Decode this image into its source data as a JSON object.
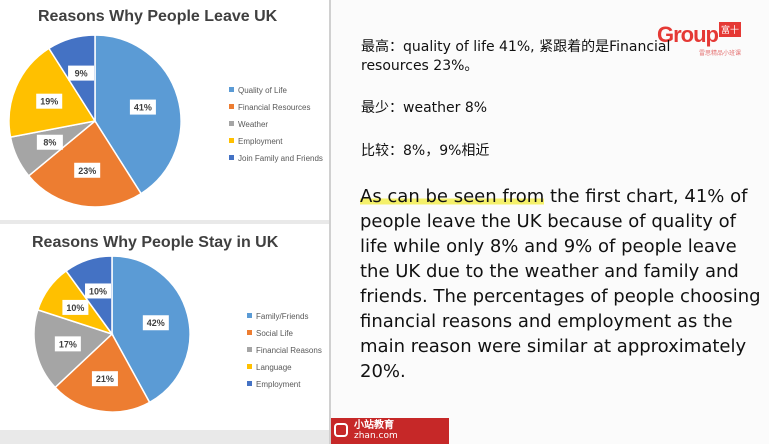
{
  "chart_data": [
    {
      "type": "pie",
      "title": "Reasons Why People Leave UK",
      "categories": [
        "Quality of Life",
        "Financial Resources",
        "Weather",
        "Employment",
        "Join Family and Friends"
      ],
      "values": [
        41,
        23,
        8,
        19,
        9
      ],
      "labels": [
        "41%",
        "23%",
        "8%",
        "19%",
        "9%"
      ],
      "colors": [
        "#5b9bd5",
        "#ed7d31",
        "#a5a5a5",
        "#ffc000",
        "#4472c4"
      ],
      "legend": "right"
    },
    {
      "type": "pie",
      "title": "Reasons Why People Stay in UK",
      "categories": [
        "Family/Friends",
        "Social Life",
        "Financial Reasons",
        "Language",
        "Employment"
      ],
      "values": [
        42,
        21,
        17,
        10,
        10
      ],
      "labels": [
        "42%",
        "21%",
        "17%",
        "10%",
        "10%"
      ],
      "colors": [
        "#5b9bd5",
        "#ed7d31",
        "#a5a5a5",
        "#ffc000",
        "#4472c4"
      ],
      "legend": "right"
    }
  ],
  "notes": {
    "highest": "最高：quality of life 41%, 紧跟着的是Financial resources 23%。",
    "lowest": "最少：weather 8%",
    "compare": "比较：8%，9%相近"
  },
  "paragraph": {
    "highlight": "As can be seen from",
    "rest": " the first chart, 41% of people leave the UK because of quality of life while only 8% and 9% of people leave the UK due to the weather and family and friends. The percentages of people choosing financial reasons and employment as the main reason were similar at approximately 20%."
  },
  "logo": {
    "text": "Group",
    "badge": "富十",
    "sub": "雷思精品小班课"
  },
  "brand": {
    "name": "小站教育",
    "url": "zhan.com"
  }
}
